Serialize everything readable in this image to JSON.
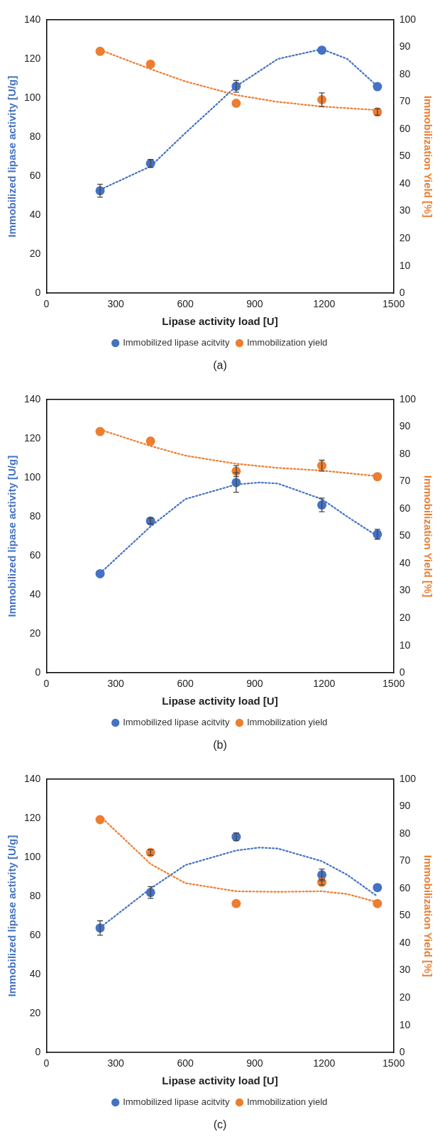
{
  "chart_data": [
    {
      "type": "scatter",
      "xlabel": "Lipase activity load [U]",
      "ylabel": "Immobilized lipase activity [U/g]",
      "y2label": "Immobilization Yield [%]",
      "annotations": [
        "(a)"
      ],
      "x": [
        232,
        450,
        820,
        1190,
        1430
      ],
      "xlim": [
        0,
        1500
      ],
      "xticks": [
        0,
        300,
        600,
        900,
        1200,
        1500
      ],
      "ylim": [
        0,
        140
      ],
      "yticks": [
        0,
        20,
        40,
        60,
        80,
        100,
        120,
        140
      ],
      "y2lim": [
        0,
        100
      ],
      "y2ticks": [
        0,
        10,
        20,
        30,
        40,
        50,
        60,
        70,
        80,
        90,
        100
      ],
      "grid": false,
      "legend": "bottom",
      "marker": "circle",
      "series": [
        {
          "name": "Immobilized lipase acitvity",
          "color": "#4472c4",
          "values": [
            52.5,
            66.5,
            106,
            124.5,
            105.8
          ],
          "errors": [
            3.3,
            2,
            3,
            null,
            null
          ]
        },
        {
          "name": "Immobilization yield",
          "color": "#ed7d31",
          "axis": "y2",
          "values": [
            88.5,
            83.8,
            69.5,
            70.8,
            66.3
          ],
          "errors": [
            null,
            null,
            null,
            2.5,
            1.2
          ]
        },
        {
          "type": "line",
          "color": "#4472c4",
          "line_style": "dotted",
          "marker": "none",
          "x": [
            232,
            450,
            600,
            820,
            1000,
            1190,
            1300,
            1430
          ],
          "values": [
            53,
            65,
            82,
            106,
            120,
            125,
            120,
            106
          ]
        },
        {
          "type": "line",
          "color": "#ed7d31",
          "axis": "y2",
          "line_style": "dotted",
          "marker": "none",
          "x": [
            232,
            450,
            600,
            820,
            1000,
            1190,
            1430
          ],
          "values": [
            89,
            82,
            77.5,
            72.5,
            70,
            68.3,
            67
          ]
        }
      ]
    },
    {
      "type": "scatter",
      "xlabel": "Lipase activity load [U]",
      "ylabel": "Immobilized lipase activity [U/g]",
      "y2label": "Immobilization Yield [%]",
      "annotations": [
        "(b)"
      ],
      "x": [
        232,
        450,
        820,
        1190,
        1430
      ],
      "xlim": [
        0,
        1500
      ],
      "xticks": [
        0,
        300,
        600,
        900,
        1200,
        1500
      ],
      "ylim": [
        0,
        140
      ],
      "yticks": [
        0,
        20,
        40,
        60,
        80,
        100,
        120,
        140
      ],
      "y2lim": [
        0,
        100
      ],
      "y2ticks": [
        0,
        10,
        20,
        30,
        40,
        50,
        60,
        70,
        80,
        90,
        100
      ],
      "grid": false,
      "legend": "bottom",
      "marker": "circle",
      "series": [
        {
          "name": "Immobilized lipase acitvity",
          "color": "#4472c4",
          "values": [
            50.8,
            77.8,
            97.5,
            86,
            71
          ],
          "errors": [
            null,
            1.5,
            5,
            3.5,
            2.5
          ]
        },
        {
          "name": "Immobilization yield",
          "color": "#ed7d31",
          "axis": "y2",
          "values": [
            88.3,
            84.8,
            73.8,
            75.8,
            71.8
          ],
          "errors": [
            null,
            null,
            2,
            2,
            null
          ]
        },
        {
          "type": "line",
          "color": "#4472c4",
          "line_style": "dotted",
          "marker": "none",
          "x": [
            232,
            450,
            600,
            820,
            920,
            1000,
            1190,
            1300,
            1430
          ],
          "values": [
            51,
            75,
            89,
            96.5,
            97.5,
            97,
            89,
            80,
            70
          ]
        },
        {
          "type": "line",
          "color": "#ed7d31",
          "axis": "y2",
          "line_style": "dotted",
          "marker": "none",
          "x": [
            232,
            450,
            600,
            820,
            1000,
            1190,
            1430
          ],
          "values": [
            89,
            83,
            79.5,
            76.5,
            75,
            74,
            72
          ]
        }
      ]
    },
    {
      "type": "scatter",
      "xlabel": "Lipase activity load [U]",
      "ylabel": "Immobilized lipase activity [U/g]",
      "y2label": "Immobilization Yield [%]",
      "annotations": [
        "(c)"
      ],
      "x": [
        232,
        450,
        820,
        1190,
        1430
      ],
      "xlim": [
        0,
        1500
      ],
      "xticks": [
        0,
        300,
        600,
        900,
        1200,
        1500
      ],
      "ylim": [
        0,
        140
      ],
      "yticks": [
        0,
        20,
        40,
        60,
        80,
        100,
        120,
        140
      ],
      "y2lim": [
        0,
        100
      ],
      "y2ticks": [
        0,
        10,
        20,
        30,
        40,
        50,
        60,
        70,
        80,
        90,
        100
      ],
      "grid": false,
      "legend": "bottom",
      "marker": "circle",
      "series": [
        {
          "name": "Immobilized lipase acitvity",
          "color": "#4472c4",
          "values": [
            63.8,
            82,
            110.5,
            91,
            84.5
          ],
          "errors": [
            3.7,
            3,
            2,
            3,
            null
          ]
        },
        {
          "name": "Immobilization yield",
          "color": "#ed7d31",
          "axis": "y2",
          "values": [
            85.2,
            73.2,
            54.5,
            62.3,
            54.5
          ],
          "errors": [
            null,
            1,
            null,
            1,
            null
          ]
        },
        {
          "type": "line",
          "color": "#4472c4",
          "line_style": "dotted",
          "marker": "none",
          "x": [
            232,
            450,
            600,
            820,
            920,
            1000,
            1190,
            1300,
            1430
          ],
          "values": [
            64,
            84,
            96,
            103.5,
            105,
            104.5,
            98,
            91,
            80
          ]
        },
        {
          "type": "line",
          "color": "#ed7d31",
          "axis": "y2",
          "line_style": "dotted",
          "marker": "none",
          "x": [
            232,
            450,
            600,
            820,
            1000,
            1190,
            1300,
            1430
          ],
          "values": [
            86.5,
            69,
            62,
            59,
            58.8,
            59,
            58,
            55
          ]
        }
      ]
    }
  ]
}
